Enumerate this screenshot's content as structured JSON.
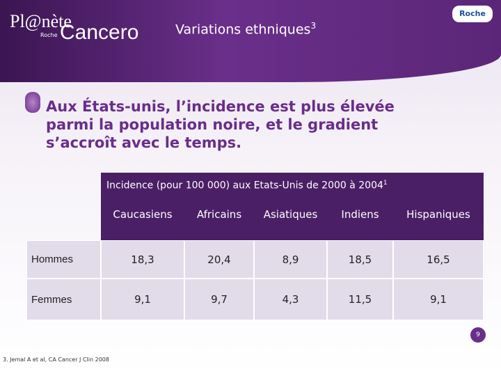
{
  "header": {
    "logo": "Pl@nète",
    "logo_sub": "Roche",
    "brand": "Cancero",
    "corner_logo": "Roche",
    "title": "Variations ethniques",
    "title_ref": "3"
  },
  "heading": [
    "Aux États-unis, l’incidence est plus élevée",
    "parmi la population noire, et le gradient",
    "s’accroît avec le temps."
  ],
  "table": {
    "caption": "Incidence (pour 100 000) aux Etats-Unis de 2000 à 2004",
    "caption_ref": "1",
    "columns": [
      "Caucasiens",
      "Africains",
      "Asiatiques",
      "Indiens",
      "Hispaniques"
    ],
    "rows": [
      {
        "label": "Hommes",
        "values": [
          "18,3",
          "20,4",
          "8,9",
          "18,5",
          "16,5"
        ]
      },
      {
        "label": "Femmes",
        "values": [
          "9,1",
          "9,7",
          "4,3",
          "11,5",
          "9,1"
        ]
      }
    ]
  },
  "footnote": "3. Jemal A et al, CA Cancer J Clin 2008",
  "page_number": "9"
}
